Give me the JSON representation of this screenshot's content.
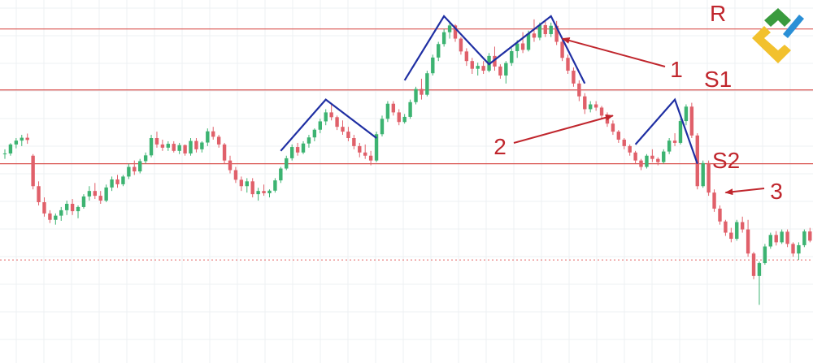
{
  "chart_data": {
    "type": "candlestick",
    "title": "",
    "xlabel": "",
    "ylabel": "",
    "grid": true,
    "ylim": [
      0,
      100
    ],
    "levels": [
      {
        "label": "R",
        "value": 94
      },
      {
        "label": "S1",
        "value": 75
      },
      {
        "label": "S2",
        "value": 52
      },
      {
        "label": "",
        "value": 22,
        "style": "dotted"
      }
    ],
    "callouts": [
      {
        "label": "1",
        "target_bar": 99,
        "target_value": 91
      },
      {
        "label": "2",
        "target_bar": 108,
        "target_value": 67
      },
      {
        "label": "3",
        "target_bar": 128,
        "target_value": 43
      }
    ],
    "pattern_lines": [
      {
        "points": [
          [
            49,
            56
          ],
          [
            57,
            72
          ],
          [
            66,
            60
          ]
        ]
      },
      {
        "points": [
          [
            71,
            78
          ],
          [
            78,
            98
          ],
          [
            86,
            83
          ],
          [
            97,
            98
          ],
          [
            103,
            77
          ]
        ]
      },
      {
        "points": [
          [
            112,
            58
          ],
          [
            119,
            72
          ],
          [
            123,
            52
          ]
        ]
      }
    ],
    "candles": [
      [
        55.0,
        56.5,
        53.5,
        55.2
      ],
      [
        55.2,
        58.4,
        54.5,
        58.0
      ],
      [
        58.0,
        60.0,
        56.8,
        59.2
      ],
      [
        59.2,
        61.0,
        57.5,
        60.1
      ],
      [
        60.1,
        61.4,
        58.2,
        59.4
      ],
      [
        54.5,
        55.0,
        44.0,
        45.0
      ],
      [
        45.0,
        46.5,
        39.0,
        40.0
      ],
      [
        40.0,
        41.5,
        35.5,
        36.5
      ],
      [
        36.5,
        37.5,
        33.5,
        34.5
      ],
      [
        34.5,
        36.5,
        33.0,
        35.8
      ],
      [
        35.8,
        38.5,
        34.2,
        37.5
      ],
      [
        37.5,
        40.5,
        36.0,
        39.5
      ],
      [
        39.5,
        41.0,
        36.0,
        37.2
      ],
      [
        37.2,
        39.0,
        35.0,
        38.5
      ],
      [
        38.5,
        42.5,
        38.0,
        41.8
      ],
      [
        41.8,
        45.0,
        40.5,
        43.5
      ],
      [
        43.5,
        46.0,
        41.0,
        42.0
      ],
      [
        42.0,
        43.5,
        39.5,
        40.5
      ],
      [
        40.5,
        45.5,
        40.0,
        44.6
      ],
      [
        44.6,
        48.0,
        43.5,
        47.1
      ],
      [
        47.1,
        48.5,
        44.5,
        45.6
      ],
      [
        45.6,
        48.5,
        45.0,
        48.0
      ],
      [
        48.0,
        52.0,
        47.2,
        51.0
      ],
      [
        51.0,
        53.0,
        48.5,
        49.6
      ],
      [
        49.6,
        53.5,
        49.0,
        52.8
      ],
      [
        52.8,
        55.5,
        52.0,
        54.6
      ],
      [
        54.6,
        61.0,
        54.0,
        60.0
      ],
      [
        60.0,
        62.0,
        57.0,
        58.0
      ],
      [
        58.0,
        59.5,
        56.0,
        57.0
      ],
      [
        57.0,
        59.0,
        56.0,
        58.2
      ],
      [
        58.2,
        59.0,
        55.5,
        56.0
      ],
      [
        56.0,
        58.5,
        55.0,
        57.8
      ],
      [
        57.8,
        58.0,
        54.5,
        55.2
      ],
      [
        55.2,
        60.0,
        54.5,
        59.1
      ],
      [
        59.1,
        60.0,
        55.5,
        56.5
      ],
      [
        56.5,
        59.0,
        55.5,
        58.6
      ],
      [
        58.6,
        63.0,
        57.5,
        62.1
      ],
      [
        62.1,
        63.5,
        59.5,
        60.4
      ],
      [
        60.4,
        61.0,
        57.0,
        58.0
      ],
      [
        58.0,
        58.5,
        52.0,
        53.0
      ],
      [
        53.0,
        54.5,
        49.0,
        50.0
      ],
      [
        50.0,
        51.0,
        46.0,
        47.0
      ],
      [
        47.0,
        48.0,
        43.5,
        45.0
      ],
      [
        45.0,
        47.5,
        43.0,
        46.5
      ],
      [
        46.5,
        47.5,
        41.5,
        42.5
      ],
      [
        42.5,
        44.5,
        40.5,
        43.5
      ],
      [
        43.5,
        45.5,
        42.0,
        42.8
      ],
      [
        42.8,
        44.0,
        41.5,
        43.6
      ],
      [
        43.6,
        47.5,
        43.0,
        46.8
      ],
      [
        46.8,
        51.0,
        46.0,
        50.5
      ],
      [
        50.5,
        54.5,
        50.0,
        53.7
      ],
      [
        53.7,
        58.0,
        53.0,
        57.2
      ],
      [
        57.2,
        58.5,
        54.5,
        55.5
      ],
      [
        55.5,
        59.0,
        55.0,
        58.3
      ],
      [
        58.3,
        61.0,
        57.0,
        60.2
      ],
      [
        60.2,
        63.0,
        59.0,
        62.6
      ],
      [
        62.6,
        66.0,
        61.5,
        65.2
      ],
      [
        65.2,
        69.0,
        64.0,
        68.0
      ],
      [
        68.0,
        70.5,
        65.5,
        66.5
      ],
      [
        66.5,
        67.0,
        62.5,
        63.5
      ],
      [
        63.5,
        65.5,
        61.0,
        62.0
      ],
      [
        62.0,
        63.5,
        59.0,
        60.0
      ],
      [
        60.0,
        61.0,
        56.5,
        57.5
      ],
      [
        57.5,
        58.5,
        54.0,
        55.5
      ],
      [
        55.5,
        58.0,
        53.5,
        54.5
      ],
      [
        54.5,
        56.0,
        51.5,
        53.0
      ],
      [
        53.0,
        62.0,
        52.5,
        61.2
      ],
      [
        61.2,
        67.0,
        60.5,
        66.0
      ],
      [
        66.0,
        71.5,
        65.0,
        70.7
      ],
      [
        70.7,
        71.5,
        67.0,
        68.0
      ],
      [
        68.0,
        69.0,
        64.0,
        65.0
      ],
      [
        65.0,
        67.5,
        64.5,
        66.6
      ],
      [
        66.6,
        72.0,
        66.0,
        71.2
      ],
      [
        71.2,
        76.0,
        70.5,
        75.3
      ],
      [
        75.3,
        78.5,
        72.0,
        73.5
      ],
      [
        73.5,
        81.0,
        73.0,
        80.2
      ],
      [
        80.2,
        86.0,
        79.5,
        85.1
      ],
      [
        85.1,
        90.0,
        84.0,
        89.3
      ],
      [
        89.3,
        94.0,
        88.5,
        93.0
      ],
      [
        93.0,
        96.0,
        91.0,
        95.1
      ],
      [
        95.1,
        95.5,
        90.0,
        91.0
      ],
      [
        91.0,
        91.5,
        86.0,
        87.0
      ],
      [
        87.0,
        88.0,
        82.5,
        84.0
      ],
      [
        84.0,
        85.0,
        80.0,
        81.6
      ],
      [
        81.6,
        83.5,
        79.5,
        82.5
      ],
      [
        82.5,
        84.0,
        80.0,
        81.0
      ],
      [
        81.0,
        86.5,
        80.5,
        85.6
      ],
      [
        85.6,
        88.5,
        81.0,
        82.3
      ],
      [
        82.3,
        83.0,
        78.5,
        79.5
      ],
      [
        79.5,
        84.0,
        77.0,
        83.4
      ],
      [
        83.4,
        88.0,
        82.5,
        87.1
      ],
      [
        87.1,
        90.5,
        85.0,
        89.5
      ],
      [
        89.5,
        93.0,
        86.5,
        87.5
      ],
      [
        87.5,
        93.5,
        87.0,
        92.6
      ],
      [
        92.6,
        97.0,
        90.0,
        91.3
      ],
      [
        91.3,
        96.0,
        90.5,
        95.2
      ],
      [
        95.2,
        97.0,
        91.5,
        92.4
      ],
      [
        92.4,
        96.0,
        91.5,
        95.0
      ],
      [
        95.0,
        96.5,
        89.0,
        90.0
      ],
      [
        90.0,
        90.5,
        84.0,
        85.0
      ],
      [
        85.0,
        86.0,
        80.0,
        81.0
      ],
      [
        81.0,
        82.0,
        76.0,
        77.0
      ],
      [
        77.0,
        78.0,
        71.5,
        73.0
      ],
      [
        73.0,
        74.0,
        67.5,
        69.0
      ],
      [
        69.0,
        71.5,
        68.0,
        70.5
      ],
      [
        70.5,
        71.5,
        68.5,
        69.5
      ],
      [
        69.5,
        70.0,
        66.0,
        67.0
      ],
      [
        67.0,
        68.0,
        63.5,
        64.5
      ],
      [
        64.5,
        65.5,
        61.0,
        62.0
      ],
      [
        62.0,
        62.5,
        58.5,
        59.5
      ],
      [
        59.5,
        60.0,
        56.5,
        57.5
      ],
      [
        57.5,
        58.0,
        54.5,
        55.5
      ],
      [
        55.5,
        56.0,
        52.0,
        53.0
      ],
      [
        53.0,
        53.5,
        50.0,
        51.0
      ],
      [
        51.0,
        55.0,
        50.5,
        54.5
      ],
      [
        54.5,
        56.5,
        52.5,
        53.5
      ],
      [
        53.5,
        54.0,
        51.5,
        52.5
      ],
      [
        52.5,
        56.5,
        52.0,
        55.8
      ],
      [
        55.8,
        60.0,
        55.0,
        59.2
      ],
      [
        59.2,
        61.5,
        57.5,
        58.5
      ],
      [
        58.5,
        66.0,
        58.0,
        65.3
      ],
      [
        65.3,
        70.5,
        64.0,
        69.8
      ],
      [
        69.8,
        71.0,
        60.0,
        60.8
      ],
      [
        60.8,
        61.5,
        44.0,
        45.0
      ],
      [
        45.0,
        53.0,
        44.5,
        52.2
      ],
      [
        52.2,
        53.0,
        42.0,
        43.0
      ],
      [
        43.0,
        44.0,
        37.0,
        38.0
      ],
      [
        38.0,
        39.0,
        33.0,
        34.0
      ],
      [
        34.0,
        34.5,
        29.5,
        30.5
      ],
      [
        30.5,
        32.0,
        27.5,
        28.6
      ],
      [
        28.6,
        34.5,
        28.0,
        33.8
      ],
      [
        33.8,
        35.5,
        30.5,
        31.5
      ],
      [
        31.5,
        34.5,
        23.0,
        24.0
      ],
      [
        24.0,
        24.5,
        16.0,
        17.0
      ],
      [
        17.0,
        21.5,
        8.0,
        21.0
      ],
      [
        21.0,
        27.0,
        20.5,
        26.2
      ],
      [
        26.2,
        30.5,
        25.5,
        29.8
      ],
      [
        29.8,
        31.0,
        26.5,
        27.5
      ],
      [
        27.5,
        31.5,
        27.0,
        30.8
      ],
      [
        30.8,
        31.5,
        26.0,
        27.0
      ],
      [
        27.0,
        27.5,
        23.0,
        24.0
      ],
      [
        24.0,
        27.5,
        22.0,
        26.6
      ],
      [
        26.6,
        31.5,
        26.0,
        30.9
      ],
      [
        30.9,
        32.0,
        27.5,
        28.0
      ],
      [
        28.0,
        35.5,
        27.5,
        30.5
      ],
      [
        30.5,
        34.0,
        29.0,
        29.8
      ],
      [
        29.8,
        30.5,
        26.0,
        27.0
      ],
      [
        27.0,
        27.5,
        23.5,
        24.0
      ],
      [
        24.0,
        25.5,
        22.0,
        22.5
      ]
    ]
  },
  "colors": {
    "up": "#3cb371",
    "down": "#e0606a",
    "level": "#d9534f",
    "dotted_level": "#e46a6a",
    "pattern": "#1f2fa3",
    "annotation": "#c0262d",
    "grid": "#eef0f3",
    "logo_green": "#3a9b3e",
    "logo_yellow": "#f2c12e",
    "logo_blue": "#2a8fd6"
  },
  "logo": {
    "icon": "broker-logo-icon"
  }
}
